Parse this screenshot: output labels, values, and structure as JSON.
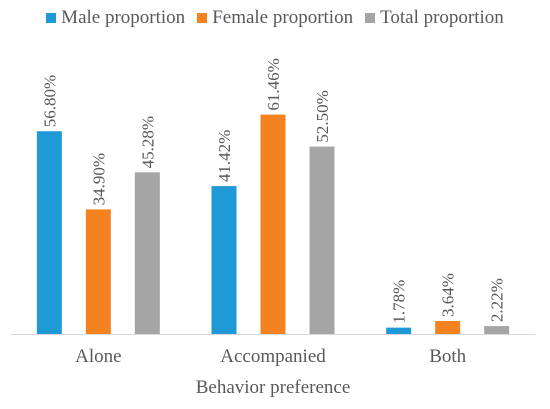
{
  "chart_data": {
    "type": "bar",
    "title": "",
    "xlabel": "Behavior preference",
    "ylabel": "",
    "categories": [
      "Alone",
      "Accompanied",
      "Both"
    ],
    "series": [
      {
        "name": "Male proportion",
        "color": "#1f9ad6",
        "values": [
          56.8,
          41.42,
          1.78
        ],
        "labels": [
          "56.80%",
          "41.42%",
          "1.78%"
        ]
      },
      {
        "name": "Female proportion",
        "color": "#f58220",
        "values": [
          34.9,
          61.46,
          3.64
        ],
        "labels": [
          "34.90%",
          "61.46%",
          "3.64%"
        ]
      },
      {
        "name": "Total proportion",
        "color": "#a5a5a5",
        "values": [
          45.28,
          52.5,
          2.22
        ],
        "labels": [
          "45.28%",
          "52.50%",
          "2.22%"
        ]
      }
    ],
    "ylim": [
      0,
      70
    ],
    "grid": false,
    "legend_position": "top"
  }
}
